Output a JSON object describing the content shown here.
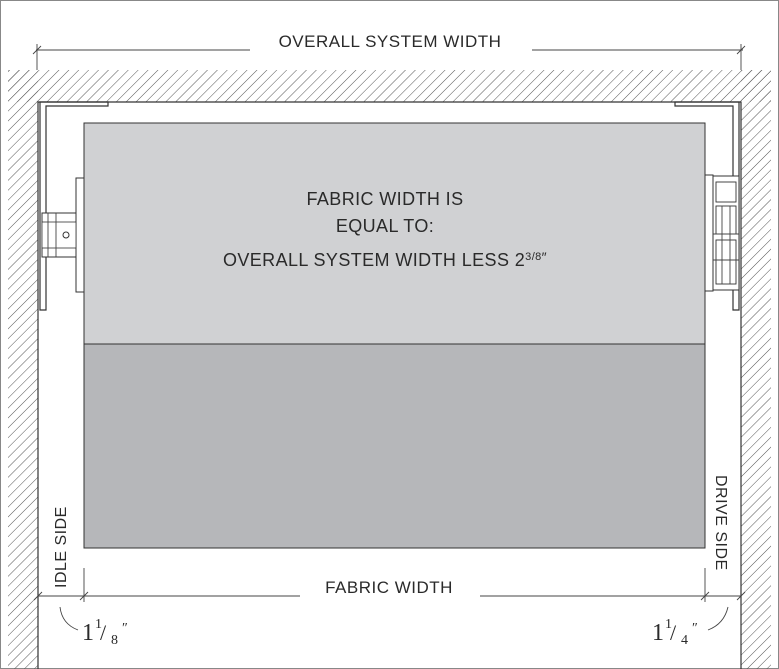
{
  "diagram": {
    "overall_label": "OVERALL SYSTEM WIDTH",
    "fabric_text": {
      "line1": "FABRIC WIDTH IS",
      "line2": "EQUAL TO:",
      "line3_main": "OVERALL SYSTEM WIDTH LESS 2",
      "line3_frac": "3/8",
      "line3_suffix": "″"
    },
    "fabric_width_label": "FABRIC WIDTH",
    "idle_side_label": "IDLE SIDE",
    "drive_side_label": "DRIVE SIDE",
    "left_offset": {
      "whole": "1",
      "numerator": "1",
      "denominator": "8",
      "suffix": "″"
    },
    "right_offset": {
      "whole": "1",
      "numerator": "1",
      "denominator": "4",
      "suffix": "″"
    },
    "colors": {
      "fabric_top": "#d0d1d3",
      "fabric_bottom": "#b6b7ba",
      "hatch": "#555555",
      "outline": "#333333"
    }
  }
}
